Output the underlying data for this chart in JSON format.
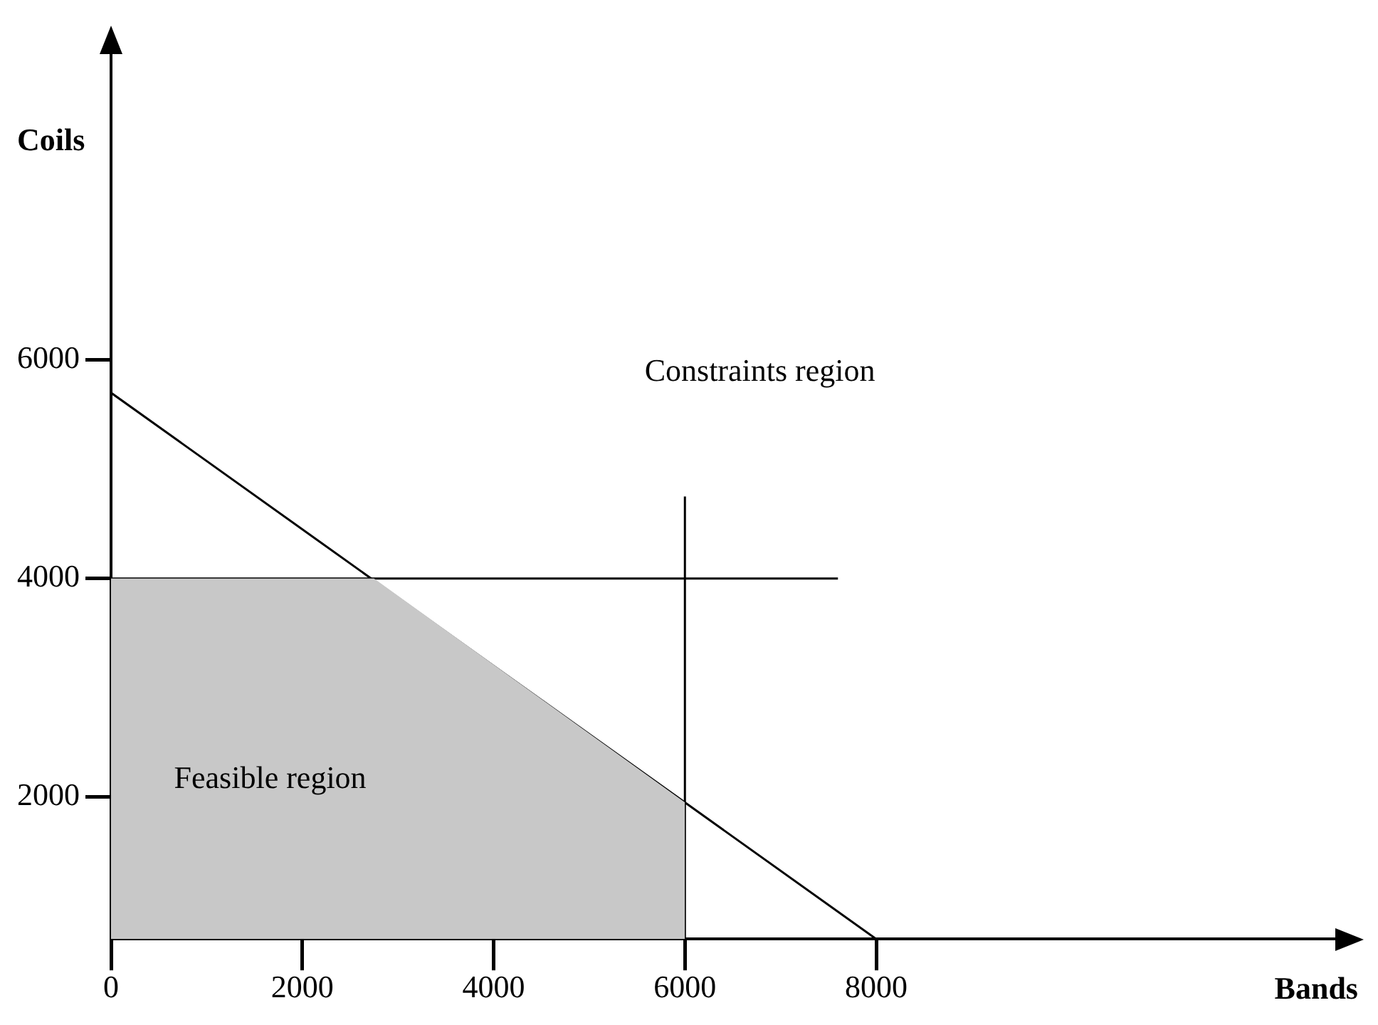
{
  "chart_data": {
    "type": "line",
    "xlabel": "Bands",
    "ylabel": "Coils",
    "xlim": [
      0,
      12800
    ],
    "ylim": [
      700,
      8800
    ],
    "xticks": [
      0,
      2000,
      4000,
      6000,
      8000
    ],
    "yticks": [
      2000,
      4000,
      6000
    ],
    "series": [
      {
        "type": "area",
        "color": "#c8c8c8",
        "x": [
          0,
          2750,
          6000,
          6000
        ],
        "values": [
          4000,
          4000,
          1950,
          700
        ]
      },
      {
        "color": "#000000",
        "x": [
          0,
          8000
        ],
        "values": [
          5700,
          700
        ]
      },
      {
        "color": "#000000",
        "x": [
          0,
          7600
        ],
        "values": [
          4000,
          4000
        ]
      },
      {
        "color": "#000000",
        "x": [
          6000,
          6000
        ],
        "values": [
          700,
          4750
        ]
      }
    ],
    "annotations": [
      "Constraints region",
      "Feasible region"
    ],
    "grid": false,
    "legend": false,
    "marker": "none",
    "line_style": "solid"
  }
}
